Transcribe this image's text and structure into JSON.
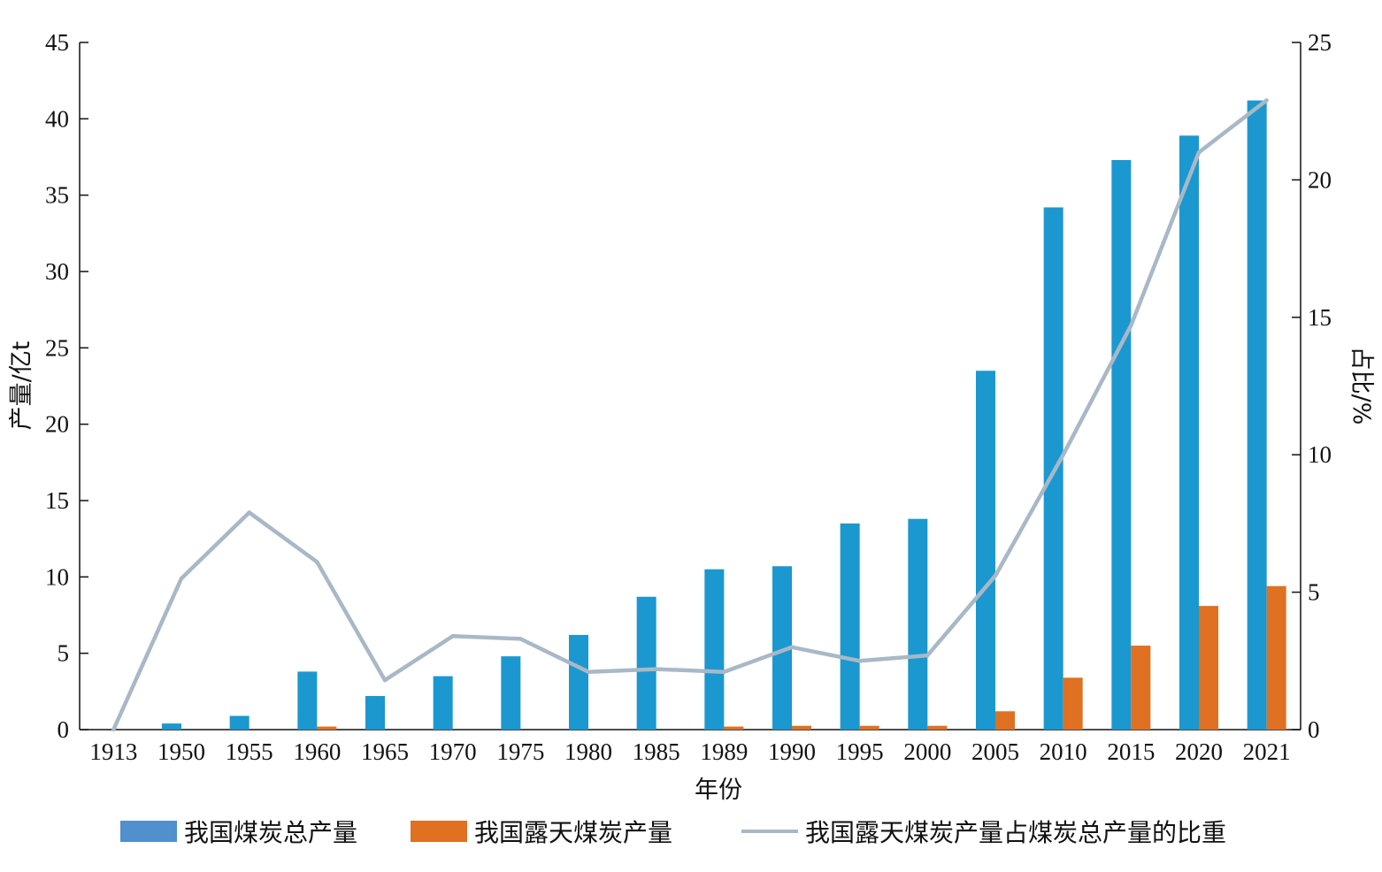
{
  "chart_data": {
    "type": "bar",
    "categories": [
      "1913",
      "1950",
      "1955",
      "1960",
      "1965",
      "1970",
      "1975",
      "1980",
      "1985",
      "1989",
      "1990",
      "1995",
      "2000",
      "2005",
      "2010",
      "2015",
      "2020",
      "2021"
    ],
    "series": [
      {
        "name": "我国煤炭总产量",
        "type": "bar",
        "axis": "left",
        "color": "#1b98d0",
        "values": [
          0.0,
          0.4,
          0.9,
          3.8,
          2.2,
          3.5,
          4.8,
          6.2,
          8.7,
          10.5,
          10.7,
          13.5,
          13.8,
          23.5,
          34.2,
          37.3,
          38.9,
          41.2
        ]
      },
      {
        "name": "我国露天煤炭产量",
        "type": "bar",
        "axis": "left",
        "color": "#e07022",
        "values": [
          0.0,
          0.0,
          0.0,
          0.2,
          0.0,
          0.0,
          0.0,
          0.0,
          0.0,
          0.2,
          0.25,
          0.25,
          0.25,
          1.2,
          3.4,
          5.5,
          8.1,
          9.4
        ]
      },
      {
        "name": "我国露天煤炭产量占煤炭总产量的比重",
        "type": "line",
        "axis": "right",
        "color": "#a9b8c6",
        "values": [
          0.0,
          5.5,
          7.9,
          6.1,
          1.8,
          3.4,
          3.3,
          2.1,
          2.2,
          2.1,
          3.0,
          2.5,
          2.7,
          5.6,
          10.0,
          14.7,
          21.0,
          22.9
        ]
      }
    ],
    "xlabel": "年份",
    "ylabel": "产量/亿t",
    "y2label": "占比/%",
    "ylim": [
      0,
      45
    ],
    "y2lim": [
      0,
      25
    ],
    "yticks": [
      0,
      5,
      10,
      15,
      20,
      25,
      30,
      35,
      40,
      45
    ],
    "y2ticks": [
      0,
      5,
      10,
      15,
      20,
      25
    ],
    "grid": false,
    "legend_position": "bottom"
  },
  "legend": {
    "total_label": "我国煤炭总产量",
    "open_pit_label": "我国露天煤炭产量",
    "ratio_label": "我国露天煤炭产量占煤炭总产量的比重",
    "total_legend_color": "#4f90cd",
    "open_pit_legend_color": "#e07022",
    "ratio_legend_color": "#a9b8c6"
  }
}
